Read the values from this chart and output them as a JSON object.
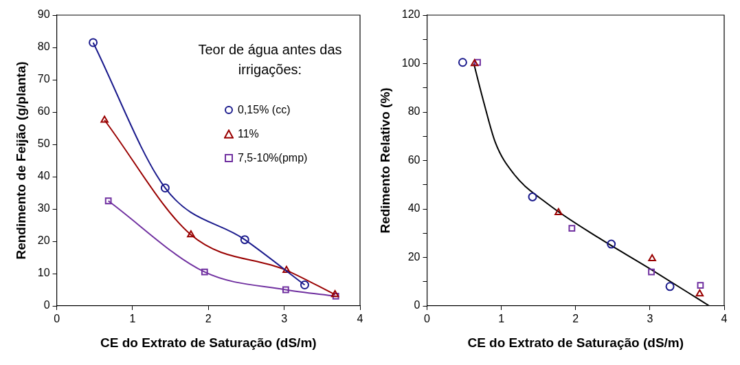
{
  "chart_data": [
    {
      "type": "line",
      "xlabel": "CE do Extrato de Saturação (dS/m)",
      "ylabel": "Rendimento de Feijão (g/planta)",
      "legend_title": "Teor de água antes das irrigações:",
      "legend": "top right",
      "grid": false,
      "xlim": [
        0,
        4
      ],
      "xticks": [
        0,
        1,
        2,
        3,
        4
      ],
      "ylim": [
        0,
        90
      ],
      "yticks": [
        0,
        10,
        20,
        30,
        40,
        50,
        60,
        70,
        80,
        90
      ],
      "series": [
        {
          "name": "0,15% (cc)",
          "color": "#1a1a8c",
          "marker": "circle",
          "x": [
            0.48,
            1.43,
            2.48,
            3.27
          ],
          "values": [
            81.5,
            36.5,
            20.5,
            6.5
          ]
        },
        {
          "name": "11%",
          "color": "#990000",
          "marker": "triangle",
          "x": [
            0.63,
            1.77,
            3.03,
            3.67
          ],
          "values": [
            57.5,
            22,
            11,
            3.5
          ]
        },
        {
          "name": "7,5-10%(pmp)",
          "color": "#7030a0",
          "marker": "square",
          "x": [
            0.68,
            1.95,
            3.02,
            3.68
          ],
          "values": [
            32.5,
            10.5,
            5,
            3
          ]
        }
      ]
    },
    {
      "type": "scatter",
      "xlabel": "CE do Extrato de Saturação (dS/m)",
      "ylabel": "Redimento Relativo (%)",
      "grid": false,
      "xlim": [
        0,
        4
      ],
      "xticks": [
        0,
        1,
        2,
        3,
        4
      ],
      "ylim": [
        0,
        120
      ],
      "yticks": [
        0,
        {
          "value": 10,
          "label": null
        },
        20,
        {
          "value": 30,
          "label": null
        },
        40,
        {
          "value": 50,
          "label": null
        },
        60,
        {
          "value": 70,
          "label": null
        },
        80,
        {
          "value": 90,
          "label": null
        },
        100,
        {
          "value": 110,
          "label": null
        },
        120
      ],
      "series": [
        {
          "color": "#1a1a8c",
          "marker": "circle",
          "x": [
            0.48,
            1.42,
            2.48,
            3.27
          ],
          "values": [
            100.5,
            45,
            25.5,
            8
          ]
        },
        {
          "color": "#990000",
          "marker": "triangle",
          "x": [
            0.64,
            1.77,
            3.03,
            3.67
          ],
          "values": [
            100,
            38.5,
            19.5,
            5
          ]
        },
        {
          "color": "#7030a0",
          "marker": "square",
          "x": [
            0.68,
            1.95,
            3.02,
            3.68
          ],
          "values": [
            100.5,
            32,
            14,
            8.5
          ]
        },
        {
          "type": "line",
          "color": "#000000",
          "marker": "none",
          "x": [
            0.63,
            0.76,
            0.92,
            1.17,
            1.63,
            2.31,
            2.98,
            3.8
          ],
          "values": [
            100,
            84.5,
            67.4,
            54.4,
            42,
            28.1,
            15.7,
            0
          ]
        }
      ]
    }
  ]
}
